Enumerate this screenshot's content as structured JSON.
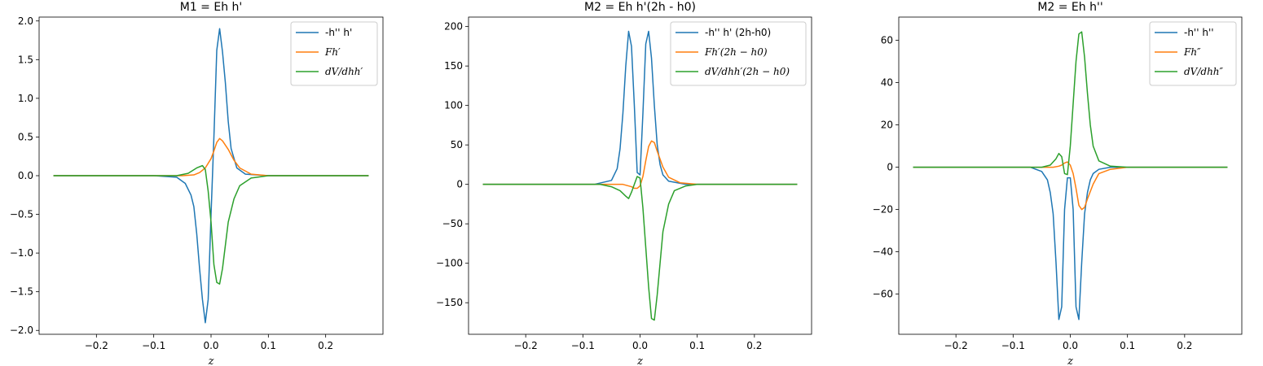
{
  "colors": {
    "blue": "#1f77b4",
    "orange": "#ff7f0e",
    "green": "#2ca02c"
  },
  "chart_data": [
    {
      "type": "line",
      "title": "M1 = Eh h'",
      "xlabel": "z",
      "xlim": [
        -0.3,
        0.3
      ],
      "ylim": [
        -2.05,
        2.05
      ],
      "xticks": [
        -0.2,
        -0.1,
        0.0,
        0.1,
        0.2
      ],
      "xtick_labels": [
        "−0.2",
        "−0.1",
        "0.0",
        "0.1",
        "0.2"
      ],
      "yticks": [
        -2.0,
        -1.5,
        -1.0,
        -0.5,
        0.0,
        0.5,
        1.0,
        1.5,
        2.0
      ],
      "ytick_labels": [
        "−2.0",
        "−1.5",
        "−1.0",
        "−0.5",
        "0.0",
        "0.5",
        "1.0",
        "1.5",
        "2.0"
      ],
      "legend_position": "top-right",
      "series": [
        {
          "name": "-h'' h'",
          "color": "#1f77b4",
          "x": [
            -0.275,
            -0.1,
            -0.06,
            -0.045,
            -0.035,
            -0.03,
            -0.025,
            -0.02,
            -0.015,
            -0.01,
            -0.005,
            0.0,
            0.005,
            0.01,
            0.015,
            0.02,
            0.025,
            0.03,
            0.035,
            0.045,
            0.06,
            0.1,
            0.275
          ],
          "y": [
            0,
            0,
            -0.02,
            -0.1,
            -0.25,
            -0.4,
            -0.75,
            -1.2,
            -1.6,
            -1.9,
            -1.6,
            -0.5,
            0.5,
            1.62,
            1.9,
            1.6,
            1.2,
            0.7,
            0.35,
            0.1,
            0.02,
            0,
            0
          ]
        },
        {
          "name": "Fh′",
          "color": "#ff7f0e",
          "x": [
            -0.275,
            -0.05,
            -0.03,
            -0.02,
            -0.01,
            0.0,
            0.005,
            0.01,
            0.015,
            0.02,
            0.03,
            0.04,
            0.05,
            0.07,
            0.1,
            0.275
          ],
          "y": [
            0,
            0,
            0.01,
            0.04,
            0.1,
            0.22,
            0.32,
            0.43,
            0.48,
            0.45,
            0.34,
            0.2,
            0.1,
            0.02,
            0,
            0
          ]
        },
        {
          "name": "dV/dhh′",
          "color": "#2ca02c",
          "x": [
            -0.275,
            -0.06,
            -0.04,
            -0.025,
            -0.015,
            -0.01,
            -0.005,
            0.0,
            0.005,
            0.01,
            0.015,
            0.02,
            0.025,
            0.03,
            0.04,
            0.05,
            0.07,
            0.1,
            0.275
          ],
          "y": [
            0,
            0,
            0.03,
            0.1,
            0.13,
            0.08,
            -0.2,
            -0.6,
            -1.15,
            -1.38,
            -1.4,
            -1.2,
            -0.9,
            -0.6,
            -0.3,
            -0.13,
            -0.03,
            0,
            0
          ]
        }
      ]
    },
    {
      "type": "line",
      "title": "M2 = Eh h'(2h - h0)",
      "xlabel": "z",
      "xlim": [
        -0.3,
        0.3
      ],
      "ylim": [
        -190,
        212
      ],
      "xticks": [
        -0.2,
        -0.1,
        0.0,
        0.1,
        0.2
      ],
      "xtick_labels": [
        "−0.2",
        "−0.1",
        "0.0",
        "0.1",
        "0.2"
      ],
      "yticks": [
        -150,
        -100,
        -50,
        0,
        50,
        100,
        150,
        200
      ],
      "ytick_labels": [
        "−150",
        "−100",
        "−50",
        "0",
        "50",
        "100",
        "150",
        "200"
      ],
      "legend_position": "top-right",
      "series": [
        {
          "name": "-h'' h' (2h-h0)",
          "color": "#1f77b4",
          "x": [
            -0.275,
            -0.08,
            -0.05,
            -0.04,
            -0.035,
            -0.03,
            -0.025,
            -0.02,
            -0.015,
            -0.01,
            -0.005,
            0.0,
            0.005,
            0.01,
            0.015,
            0.02,
            0.025,
            0.03,
            0.035,
            0.04,
            0.05,
            0.08,
            0.275
          ],
          "y": [
            0,
            0,
            5,
            20,
            45,
            90,
            150,
            194,
            175,
            100,
            15,
            12,
            90,
            178,
            194,
            160,
            100,
            50,
            25,
            12,
            4,
            0,
            0
          ]
        },
        {
          "name": "Fh′(2h − h0)",
          "color": "#ff7f0e",
          "x": [
            -0.275,
            -0.03,
            -0.015,
            -0.01,
            -0.005,
            0.0,
            0.005,
            0.01,
            0.015,
            0.02,
            0.025,
            0.03,
            0.04,
            0.05,
            0.07,
            0.1,
            0.275
          ],
          "y": [
            0,
            0,
            -3,
            -5,
            -5,
            -2,
            10,
            30,
            48,
            55,
            53,
            42,
            22,
            9,
            2,
            0,
            0
          ]
        },
        {
          "name": "dV/dhh′(2h − h0)",
          "color": "#2ca02c",
          "x": [
            -0.275,
            -0.07,
            -0.05,
            -0.035,
            -0.025,
            -0.02,
            -0.015,
            -0.01,
            -0.005,
            0.0,
            0.005,
            0.01,
            0.015,
            0.02,
            0.025,
            0.03,
            0.035,
            0.04,
            0.05,
            0.06,
            0.08,
            0.1,
            0.275
          ],
          "y": [
            0,
            0,
            -3,
            -8,
            -15,
            -18,
            -10,
            0,
            10,
            8,
            -30,
            -80,
            -130,
            -170,
            -172,
            -140,
            -100,
            -60,
            -25,
            -8,
            -2,
            0,
            0
          ]
        }
      ]
    },
    {
      "type": "line",
      "title": "M2 = Eh h''",
      "xlabel": "z",
      "xlim": [
        -0.3,
        0.3
      ],
      "ylim": [
        -79,
        71
      ],
      "xticks": [
        -0.2,
        -0.1,
        0.0,
        0.1,
        0.2
      ],
      "xtick_labels": [
        "−0.2",
        "−0.1",
        "0.0",
        "0.1",
        "0.2"
      ],
      "yticks": [
        -60,
        -40,
        -20,
        0,
        20,
        40,
        60
      ],
      "ytick_labels": [
        "−60",
        "−40",
        "−20",
        "0",
        "20",
        "40",
        "60"
      ],
      "legend_position": "top-right",
      "series": [
        {
          "name": "-h'' h''",
          "color": "#1f77b4",
          "x": [
            -0.275,
            -0.07,
            -0.05,
            -0.04,
            -0.035,
            -0.03,
            -0.025,
            -0.02,
            -0.015,
            -0.01,
            -0.005,
            0.0,
            0.005,
            0.01,
            0.015,
            0.02,
            0.025,
            0.03,
            0.035,
            0.04,
            0.05,
            0.07,
            0.275
          ],
          "y": [
            0,
            0,
            -2,
            -6,
            -12,
            -22,
            -45,
            -72,
            -66,
            -20,
            -5,
            -5,
            -20,
            -66,
            -72,
            -45,
            -22,
            -12,
            -6,
            -3,
            -1,
            0,
            0
          ]
        },
        {
          "name": "Fh″",
          "color": "#ff7f0e",
          "x": [
            -0.275,
            -0.03,
            -0.02,
            -0.015,
            -0.01,
            -0.005,
            0.0,
            0.005,
            0.01,
            0.015,
            0.02,
            0.025,
            0.03,
            0.04,
            0.05,
            0.07,
            0.1,
            0.275
          ],
          "y": [
            0,
            0,
            0.5,
            1,
            2,
            2.5,
            1,
            -3,
            -10,
            -18,
            -20,
            -19,
            -15,
            -8,
            -3,
            -1,
            0,
            0
          ]
        },
        {
          "name": "dV/dhh″",
          "color": "#2ca02c",
          "x": [
            -0.275,
            -0.05,
            -0.035,
            -0.025,
            -0.02,
            -0.015,
            -0.01,
            -0.005,
            0.0,
            0.005,
            0.01,
            0.015,
            0.02,
            0.025,
            0.03,
            0.035,
            0.04,
            0.05,
            0.07,
            0.1,
            0.275
          ],
          "y": [
            0,
            0,
            1,
            4,
            6.5,
            5,
            -3,
            -3.5,
            10,
            30,
            50,
            63,
            64,
            52,
            35,
            20,
            10,
            3,
            0.5,
            0,
            0
          ]
        }
      ]
    }
  ]
}
